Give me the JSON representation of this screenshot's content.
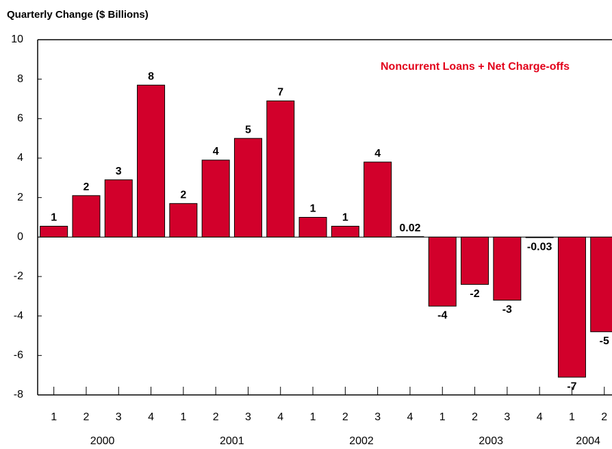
{
  "chart_data": {
    "type": "bar",
    "title": "Quarterly Change ($ Billions)",
    "legend": "Noncurrent Loans + Net Charge-offs",
    "legend_color": "#e2001a",
    "categories": [
      "1",
      "2",
      "3",
      "4",
      "1",
      "2",
      "3",
      "4",
      "1",
      "2",
      "3",
      "4",
      "1",
      "2",
      "3",
      "4",
      "1",
      "2"
    ],
    "groups": [
      "2000",
      "2001",
      "2002",
      "2003",
      "2004"
    ],
    "group_size": 4,
    "values": [
      0.55,
      2.1,
      2.9,
      7.7,
      1.7,
      3.9,
      5.0,
      6.9,
      1.0,
      0.55,
      3.8,
      0.02,
      -3.5,
      -2.4,
      -3.2,
      -0.03,
      -7.1,
      -4.8
    ],
    "value_labels": [
      "1",
      "2",
      "3",
      "8",
      "2",
      "4",
      "5",
      "7",
      "1",
      "1",
      "4",
      "0.02",
      "-4",
      "-2",
      "-3",
      "-0.03",
      "-7",
      "-5"
    ],
    "colors": [
      "#d2002b",
      "#d2002b",
      "#d2002b",
      "#d2002b",
      "#d2002b",
      "#d2002b",
      "#d2002b",
      "#d2002b",
      "#d2002b",
      "#d2002b",
      "#d2002b",
      "#ffffff",
      "#d2002b",
      "#d2002b",
      "#d2002b",
      "#ffffff",
      "#d2002b",
      "#d2002b"
    ],
    "ylim": [
      -8,
      10
    ],
    "yticks": [
      -8,
      -6,
      -4,
      -2,
      0,
      2,
      4,
      6,
      8,
      10
    ]
  }
}
